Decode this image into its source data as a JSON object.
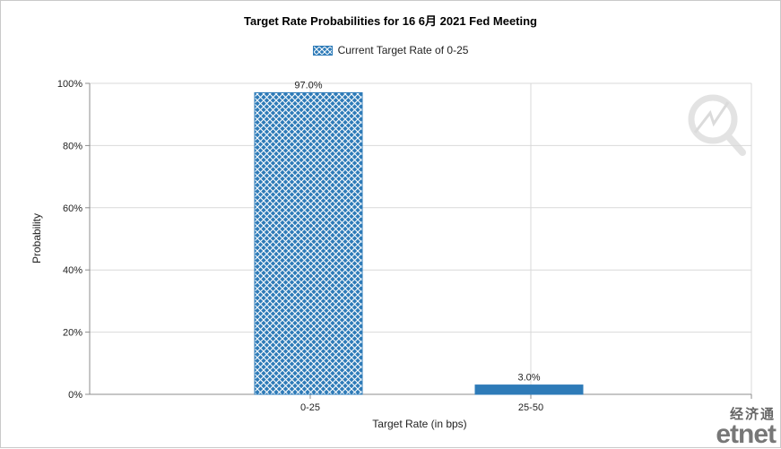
{
  "chart_data": {
    "type": "bar",
    "title": "Target Rate Probabilities for 16 6月  2021  Fed Meeting",
    "xlabel": "Target Rate (in bps)",
    "ylabel": "Probability",
    "categories": [
      "0-25",
      "25-50"
    ],
    "series": [
      {
        "name": "Current Target Rate of 0-25",
        "values": [
          97.0,
          3.0
        ]
      }
    ],
    "data_labels": [
      "97.0%",
      "3.0%"
    ],
    "ylim": [
      0,
      100
    ],
    "yticks": [
      "0%",
      "20%",
      "40%",
      "60%",
      "80%",
      "100%"
    ],
    "ytick_values": [
      0,
      20,
      40,
      60,
      80,
      100
    ],
    "grid": true,
    "legend_position": "top-center",
    "colors": {
      "bar": "#2e7bb8",
      "hatch": "#ffffff",
      "grid": "#d9d9d9",
      "axis": "#8c8c8c"
    }
  },
  "watermark": {
    "cn": "经济通",
    "logo": "etnet"
  }
}
